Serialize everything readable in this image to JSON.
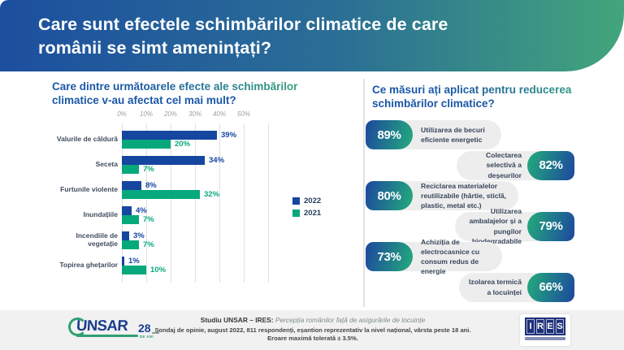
{
  "header": {
    "title_line1": "Care sunt efectele schimbărilor climatice de care",
    "title_line2": "românii se simt amenințați?"
  },
  "left_panel": {
    "title_line1": "Care dintre următoarele efecte ale schimbărilor",
    "title_line2": "climatice v-au afectat cel mai mult?"
  },
  "chart_data": {
    "type": "bar",
    "orientation": "horizontal",
    "title": "Care dintre următoarele efecte ale schimbărilor climatice v-au afectat cel mai mult?",
    "categories": [
      "Valurile de căldură",
      "Seceta",
      "Furtunile violente",
      "Inundațiile",
      "Incendiile de vegetație",
      "Topirea ghețarilor"
    ],
    "series": [
      {
        "name": "2022",
        "color": "#1546a0",
        "values": [
          39,
          34,
          8,
          4,
          3,
          1
        ]
      },
      {
        "name": "2021",
        "color": "#07a97c",
        "values": [
          20,
          7,
          32,
          7,
          7,
          10
        ]
      }
    ],
    "x_ticks": [
      "0%",
      "10%",
      "20%",
      "30%",
      "40%",
      "50%"
    ],
    "xlim": [
      0,
      60
    ],
    "grid": true,
    "legend_position": "right",
    "value_label_suffix": "%"
  },
  "right_panel": {
    "title_line1": "Ce măsuri ați aplicat pentru reducerea",
    "title_line2": "schimbărilor climatice?",
    "items": [
      {
        "percent": "89%",
        "label": "Utilizarea de becuri eficiente energetic",
        "align": "left"
      },
      {
        "percent": "82%",
        "label": "Colectarea selectivă a deșeurilor",
        "align": "right"
      },
      {
        "percent": "80%",
        "label": "Reciclarea materialelor reutilizabile (hârtie, sticlă, plastic, metal etc.)",
        "align": "left"
      },
      {
        "percent": "79%",
        "label": "Utilizarea ambalajelor și a pungilor biodegradabile",
        "align": "right"
      },
      {
        "percent": "73%",
        "label": "Achiziția de electrocasnice cu consum redus de energie",
        "align": "left"
      },
      {
        "percent": "66%",
        "label": "Izolarea termică a locuinței",
        "align": "right"
      }
    ]
  },
  "footer": {
    "study_bold": "Studiu UNSAR – IRES:",
    "study_italic": "Percepția românilor față de asigurările de locuințe",
    "line2": "Sondaj de opinie, august 2022, 811 respondenți, eșantion reprezentativ la nivel național, vârsta peste 18 ani.",
    "line3": "Eroare maximă tolerată ± 3.5%.",
    "unsar": {
      "name": "UNSAR",
      "years": "28",
      "years_sub": "DE ANI"
    },
    "ires_letters": [
      "I",
      "R",
      "E",
      "S"
    ]
  },
  "colors": {
    "header_gradient_start": "#1c4f9f",
    "header_gradient_end": "#42a57b",
    "title_blue": "#1b58a6",
    "title_green": "#35a37b",
    "bar_2022": "#1546a0",
    "bar_2021": "#07a97c",
    "badge_blue": "#1d4c9c",
    "badge_green": "#23a77d",
    "pill_bg": "#ededee",
    "footer_bg": "#f1f1f2"
  }
}
